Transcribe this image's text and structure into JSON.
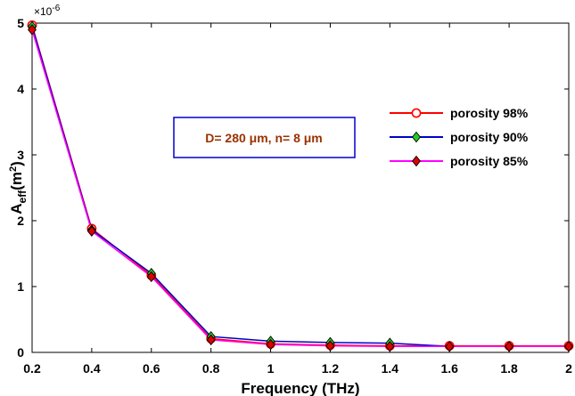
{
  "chart_data": {
    "type": "line",
    "xlabel": "Frequency (THz)",
    "ylabel": {
      "base": "A",
      "sub": "eff",
      "paren_open": "(m",
      "sup": "2",
      "paren_close": ")"
    },
    "y_exponent": {
      "prefix": "×10",
      "power": "-6"
    },
    "xlim": [
      0.2,
      2.0
    ],
    "ylim": [
      0,
      5
    ],
    "x_ticks": [
      0.2,
      0.4,
      0.6,
      0.8,
      1.0,
      1.2,
      1.4,
      1.6,
      1.8,
      2.0
    ],
    "x_tick_labels": [
      "0.2",
      "0.4",
      "0.6",
      "0.8",
      "1",
      "1.2",
      "1.4",
      "1.6",
      "1.8",
      "2"
    ],
    "y_ticks": [
      0,
      1,
      2,
      3,
      4,
      5
    ],
    "y_tick_labels": [
      "0",
      "1",
      "2",
      "3",
      "4",
      "5"
    ],
    "y_multiplier": 1e-06,
    "x": [
      0.2,
      0.4,
      0.6,
      0.8,
      1.0,
      1.2,
      1.4,
      1.6,
      1.8,
      2.0
    ],
    "series": [
      {
        "name": "porosity 98%",
        "color": "#ff0000",
        "marker": "circle",
        "marker_fill": "#ffffff",
        "values": [
          4.97,
          1.88,
          1.17,
          0.21,
          0.13,
          0.11,
          0.1,
          0.1,
          0.1,
          0.1
        ]
      },
      {
        "name": "porosity 90%",
        "color": "#0000cc",
        "marker": "diamond",
        "marker_fill": "#22cc22",
        "values": [
          4.95,
          1.86,
          1.2,
          0.24,
          0.17,
          0.15,
          0.14,
          0.09,
          0.09,
          0.09
        ]
      },
      {
        "name": "porosity 85%",
        "color": "#ff00ff",
        "marker": "diamond",
        "marker_fill": "#dd0000",
        "values": [
          4.9,
          1.84,
          1.15,
          0.19,
          0.12,
          0.1,
          0.09,
          0.09,
          0.09,
          0.09
        ]
      }
    ],
    "legend_position": "right",
    "annotation": {
      "text": "D= 280 μm, n= 8 μm",
      "text_color": "#993300",
      "border_color": "#0000cc"
    },
    "grid": false
  }
}
